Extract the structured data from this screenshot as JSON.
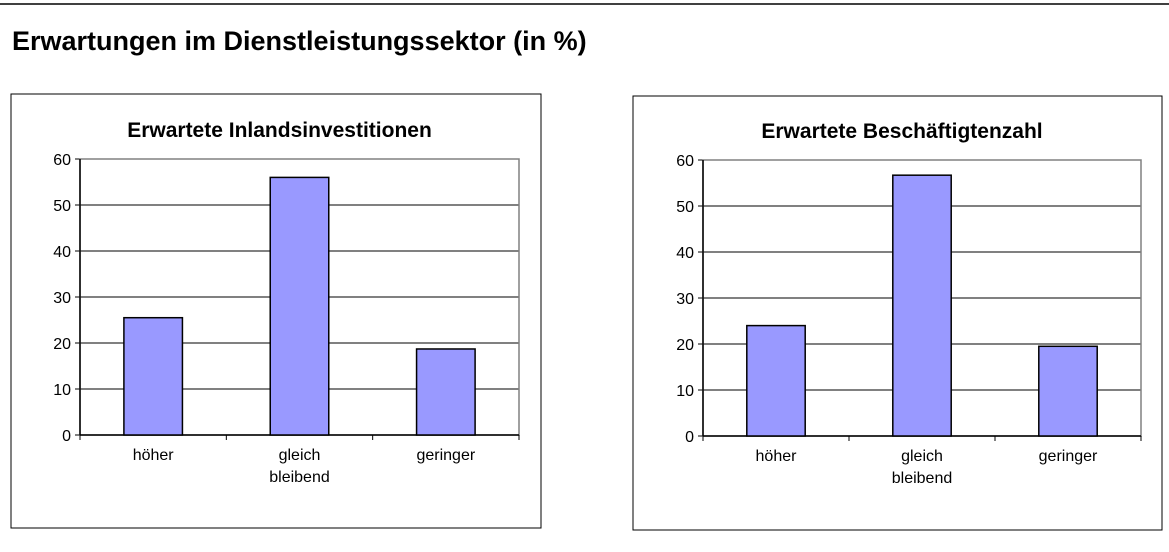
{
  "header": {
    "title": "Erwartungen im Dienstleistungssektor (in %)"
  },
  "chart_data": [
    {
      "type": "bar",
      "title": "Erwartete Inlandsinvestitionen",
      "categories": [
        "höher",
        "gleich bleibend",
        "geringer"
      ],
      "values": [
        25.5,
        56,
        18.7
      ],
      "color": "#9999ff",
      "ylim": [
        0,
        60
      ],
      "yticks": [
        0,
        10,
        20,
        30,
        40,
        50,
        60
      ],
      "grid": true
    },
    {
      "type": "bar",
      "title": "Erwartete Beschäftigtenzahl",
      "categories": [
        "höher",
        "gleich bleibend",
        "geringer"
      ],
      "values": [
        24,
        56.7,
        19.5
      ],
      "color": "#9999ff",
      "ylim": [
        0,
        60
      ],
      "yticks": [
        0,
        10,
        20,
        30,
        40,
        50,
        60
      ],
      "grid": true
    }
  ]
}
